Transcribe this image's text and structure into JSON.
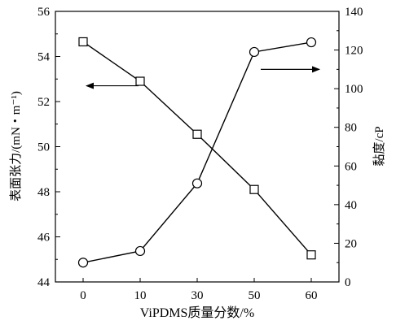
{
  "chart_data": {
    "type": "line",
    "categories": [
      "0",
      "10",
      "30",
      "50",
      "60"
    ],
    "xlabel": "ViPDMS质量分数/%",
    "y_left": {
      "label": "表面张力/(mN・m⁻¹)",
      "ylim": [
        44,
        56
      ],
      "ticks": [
        "44",
        "46",
        "48",
        "50",
        "52",
        "54",
        "56"
      ]
    },
    "y_right": {
      "label": "黏度/cP",
      "ylim": [
        0,
        140
      ],
      "ticks": [
        "0",
        "20",
        "40",
        "60",
        "80",
        "100",
        "120",
        "140"
      ]
    },
    "series": [
      {
        "marker": "square",
        "axis": "left",
        "values": [
          54.65,
          52.9,
          50.55,
          48.1,
          45.2
        ]
      },
      {
        "marker": "circle",
        "axis": "right",
        "values": [
          10,
          16,
          51,
          119,
          124
        ]
      }
    ],
    "annotations": [
      {
        "direction": "left",
        "target": "left-axis",
        "series": 0
      },
      {
        "direction": "right",
        "target": "right-axis",
        "series": 1
      }
    ],
    "grid": false,
    "legend": "none"
  }
}
